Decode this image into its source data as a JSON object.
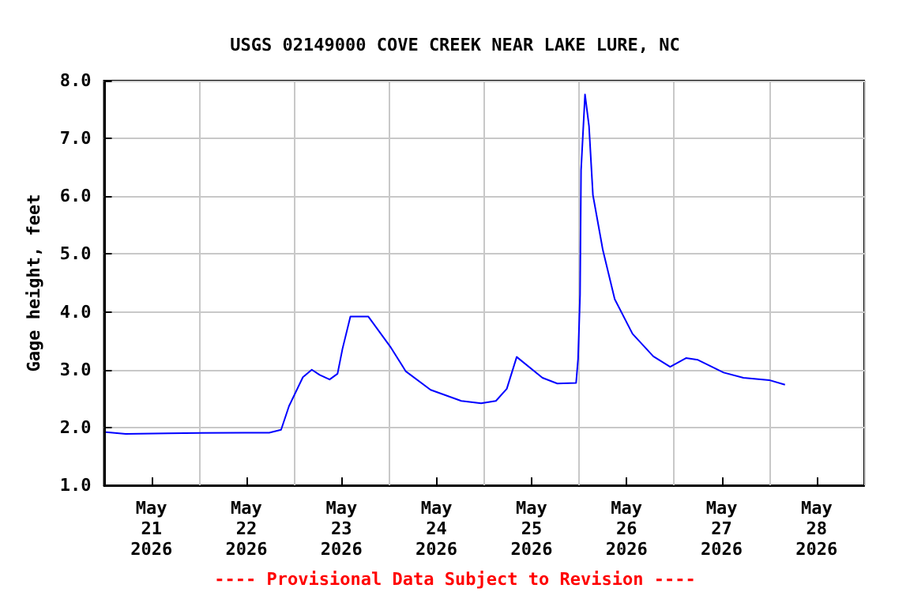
{
  "chart_data": {
    "type": "line",
    "title": "USGS 02149000 COVE CREEK NEAR LAKE LURE, NC",
    "ylabel": "Gage height, feet",
    "annotations": [
      "---- Provisional Data Subject to Revision ----"
    ],
    "x": [
      "2026-05-21T00:30",
      "2026-05-21T05:30",
      "2026-05-21T16:15",
      "2026-05-22T11:30",
      "2026-05-22T17:45",
      "2026-05-22T20:45",
      "2026-05-22T22:45",
      "2026-05-23T02:15",
      "2026-05-23T04:30",
      "2026-05-23T06:30",
      "2026-05-23T09:00",
      "2026-05-23T11:00",
      "2026-05-23T12:15",
      "2026-05-23T14:15",
      "2026-05-23T18:45",
      "2026-05-24T00:30",
      "2026-05-24T04:15",
      "2026-05-24T10:30",
      "2026-05-24T18:15",
      "2026-05-24T23:15",
      "2026-05-25T03:00",
      "2026-05-25T05:45",
      "2026-05-25T08:15",
      "2026-05-25T14:45",
      "2026-05-25T18:30",
      "2026-05-25T23:15",
      "2026-05-25T23:45",
      "2026-05-26T00:15",
      "2026-05-26T00:30",
      "2026-05-26T01:30",
      "2026-05-26T02:30",
      "2026-05-26T03:30",
      "2026-05-26T06:00",
      "2026-05-26T09:00",
      "2026-05-26T13:30",
      "2026-05-26T18:45",
      "2026-05-26T23:00",
      "2026-05-27T03:00",
      "2026-05-27T06:00",
      "2026-05-27T12:30",
      "2026-05-27T17:30",
      "2026-05-28T00:00",
      "2026-05-28T04:00"
    ],
    "series": [
      {
        "color": "#0000ff",
        "values": [
          1.92,
          1.89,
          1.9,
          1.91,
          1.91,
          1.96,
          2.37,
          2.87,
          3.0,
          2.91,
          2.83,
          2.93,
          3.36,
          3.92,
          3.92,
          3.38,
          2.97,
          2.65,
          2.46,
          2.42,
          2.46,
          2.67,
          3.22,
          2.86,
          2.76,
          2.77,
          3.19,
          4.3,
          6.45,
          7.76,
          7.22,
          6.02,
          5.07,
          4.22,
          3.62,
          3.23,
          3.05,
          3.2,
          3.17,
          2.95,
          2.86,
          2.82,
          2.74
        ]
      }
    ],
    "xlim": [
      "2026-05-21T00:00",
      "2026-05-29T00:00"
    ],
    "xticks": [
      {
        "value": "2026-05-21T00:00",
        "label": null
      },
      {
        "value": "2026-05-21T12:00",
        "label": "May\n21\n2026"
      },
      {
        "value": "2026-05-22T00:00",
        "label": null
      },
      {
        "value": "2026-05-22T12:00",
        "label": "May\n22\n2026"
      },
      {
        "value": "2026-05-23T00:00",
        "label": null
      },
      {
        "value": "2026-05-23T12:00",
        "label": "May\n23\n2026"
      },
      {
        "value": "2026-05-24T00:00",
        "label": null
      },
      {
        "value": "2026-05-24T12:00",
        "label": "May\n24\n2026"
      },
      {
        "value": "2026-05-25T00:00",
        "label": null
      },
      {
        "value": "2026-05-25T12:00",
        "label": "May\n25\n2026"
      },
      {
        "value": "2026-05-26T00:00",
        "label": null
      },
      {
        "value": "2026-05-26T12:00",
        "label": "May\n26\n2026"
      },
      {
        "value": "2026-05-27T00:00",
        "label": null
      },
      {
        "value": "2026-05-27T12:00",
        "label": "May\n27\n2026"
      },
      {
        "value": "2026-05-28T00:00",
        "label": null
      },
      {
        "value": "2026-05-28T12:00",
        "label": "May\n28\n2026"
      },
      {
        "value": "2026-05-29T00:00",
        "label": null
      }
    ],
    "ylim": [
      1,
      8
    ],
    "yticks": [
      {
        "value": 1,
        "label": "1.0"
      },
      {
        "value": 2,
        "label": "2.0"
      },
      {
        "value": 3,
        "label": "3.0"
      },
      {
        "value": 4,
        "label": "4.0"
      },
      {
        "value": 5,
        "label": "5.0"
      },
      {
        "value": 6,
        "label": "6.0"
      },
      {
        "value": 7,
        "label": "7.0"
      },
      {
        "value": 8,
        "label": "8.0"
      }
    ],
    "grid": true,
    "marker": "none",
    "line_style": "solid"
  }
}
